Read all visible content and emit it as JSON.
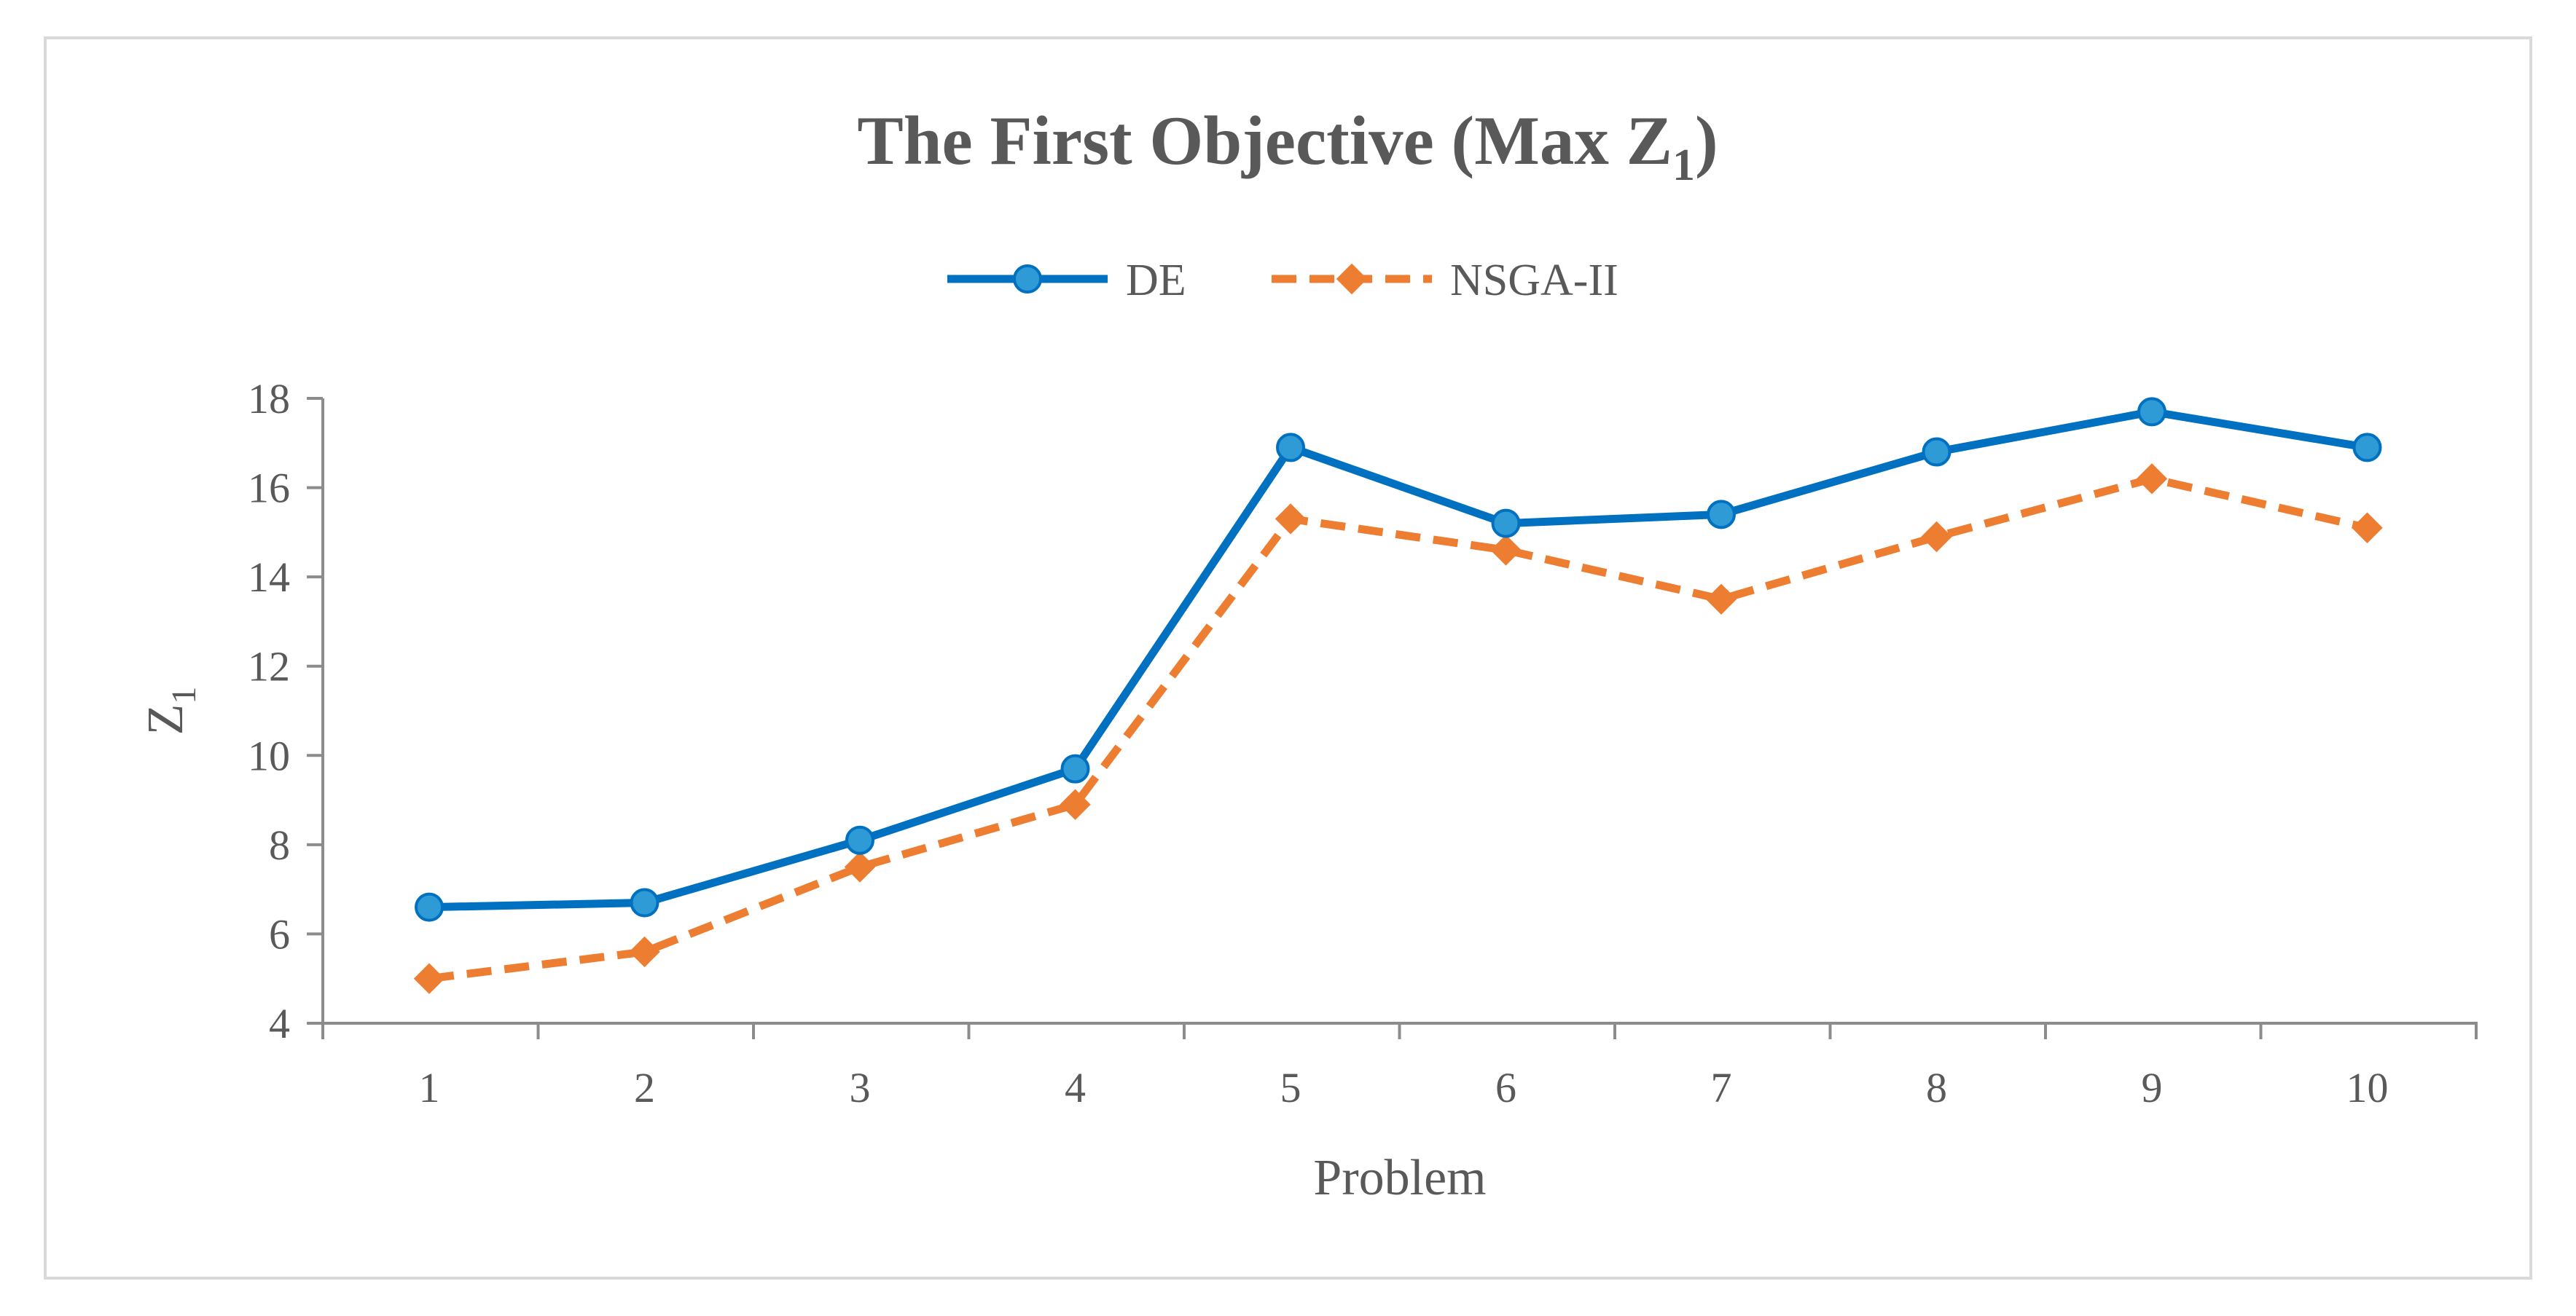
{
  "chart_data": {
    "type": "line",
    "title": {
      "main": "The First Objective (Max Z",
      "subscript": "1",
      "suffix": ")"
    },
    "xlabel": "Problem",
    "ylabel": {
      "main": "Z",
      "subscript": "1"
    },
    "categories": [
      "1",
      "2",
      "3",
      "4",
      "5",
      "6",
      "7",
      "8",
      "9",
      "10"
    ],
    "y_ticks": [
      "4",
      "6",
      "8",
      "10",
      "12",
      "14",
      "16",
      "18"
    ],
    "ylim": [
      4,
      18
    ],
    "grid": false,
    "legend_position": "top-center",
    "series": [
      {
        "name": "DE",
        "color": "#0070C0",
        "marker": "circle",
        "dashed": false,
        "values": [
          6.6,
          6.7,
          8.1,
          9.7,
          16.9,
          15.2,
          15.4,
          16.8,
          17.7,
          16.9
        ]
      },
      {
        "name": "NSGA-II",
        "color": "#ED7D31",
        "marker": "diamond",
        "dashed": true,
        "values": [
          5.0,
          5.6,
          7.5,
          8.9,
          15.3,
          14.6,
          13.5,
          14.9,
          16.2,
          15.1
        ]
      }
    ]
  }
}
